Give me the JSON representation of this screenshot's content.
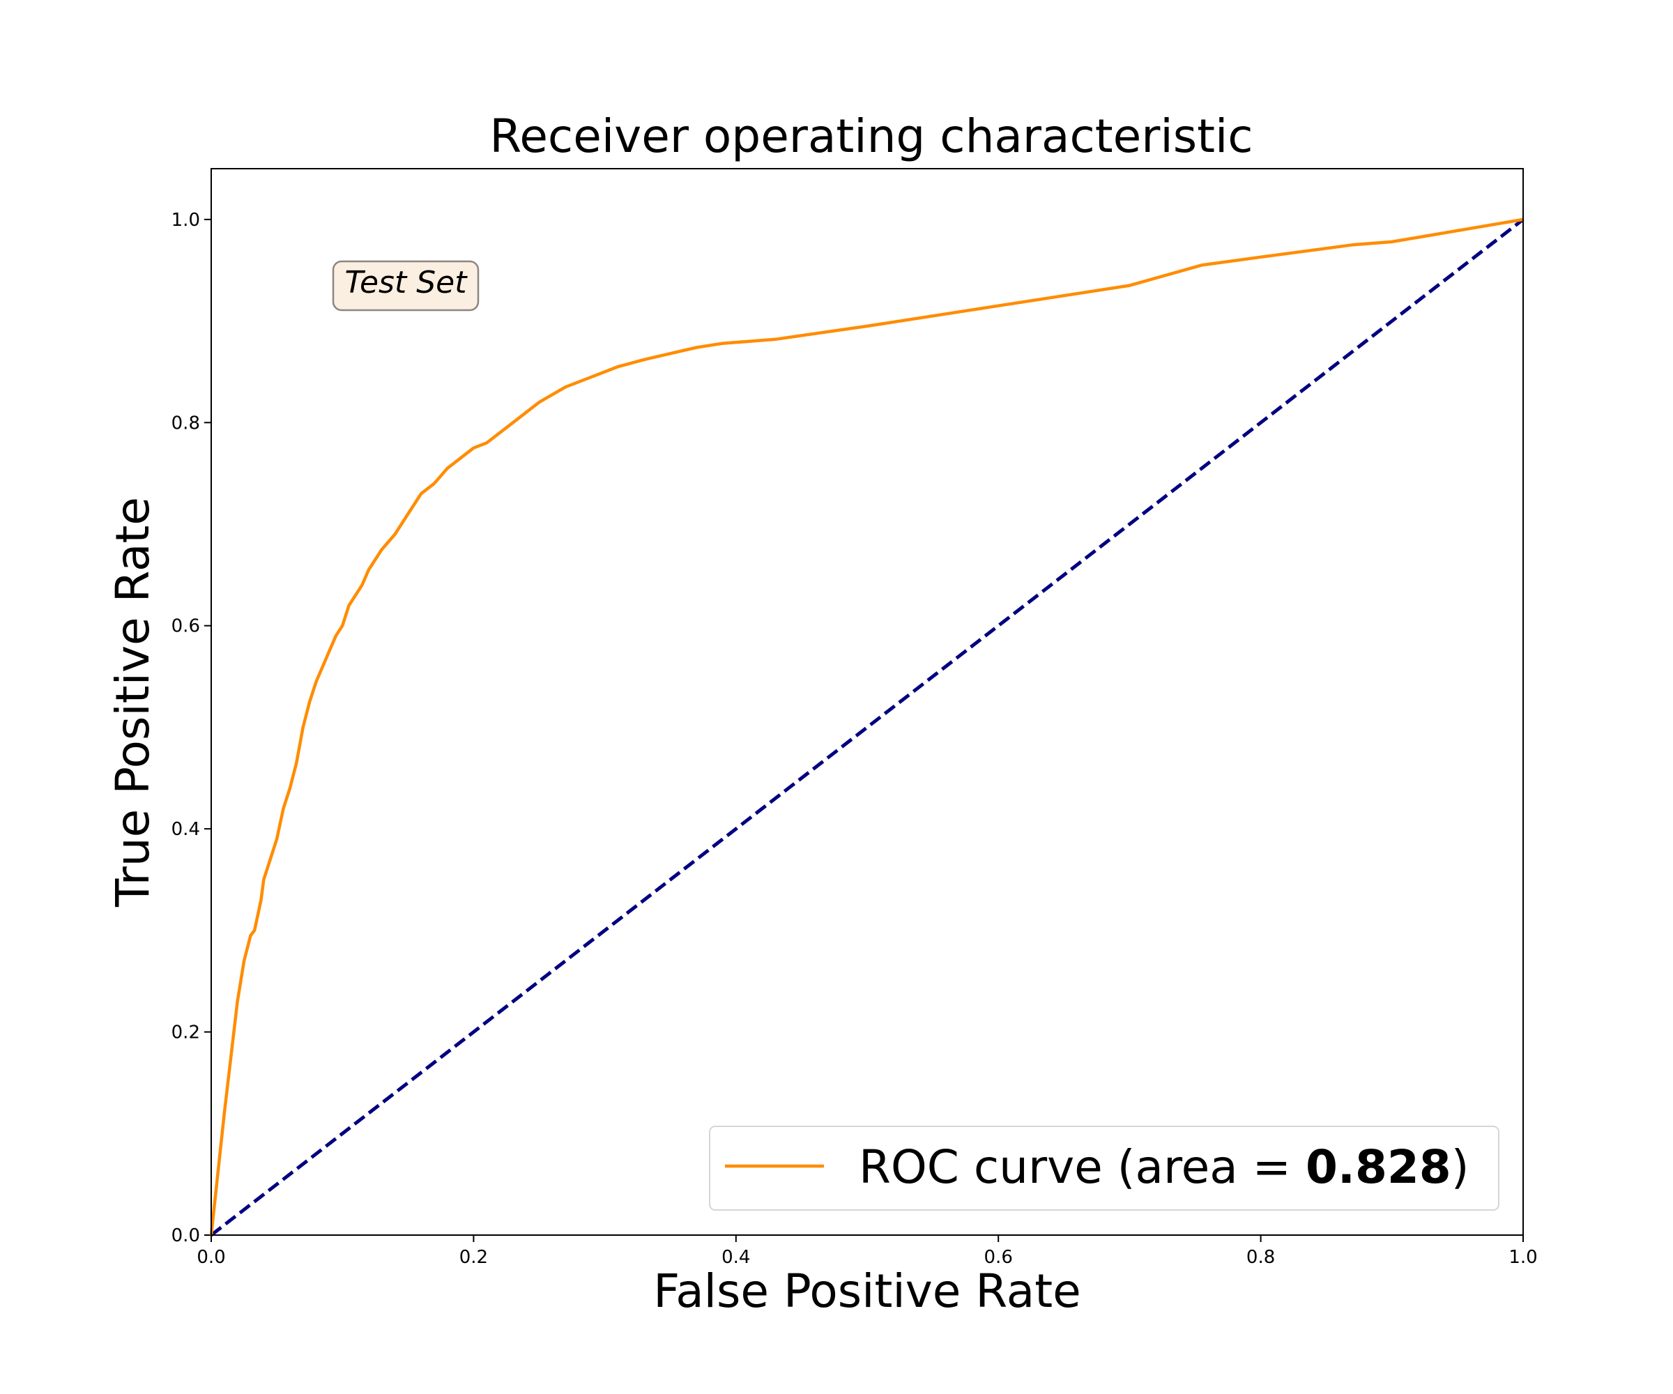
{
  "chart_data": {
    "type": "line",
    "title": "Receiver operating characteristic",
    "xlabel": "False Positive Rate",
    "ylabel": "True Positive Rate",
    "xlim": [
      0.0,
      1.0
    ],
    "ylim": [
      0.0,
      1.05
    ],
    "xticks": [
      "0.0",
      "0.2",
      "0.4",
      "0.6",
      "0.8",
      "1.0"
    ],
    "yticks": [
      "0.0",
      "0.2",
      "0.4",
      "0.6",
      "0.8",
      "1.0"
    ],
    "grid": false,
    "legend_position": "bottom-right",
    "legend_label_prefix": "ROC curve (area = ",
    "legend_label_value": "0.828",
    "legend_label_suffix": ")",
    "annotation": "Test Set",
    "series": [
      {
        "name": "ROC curve (area = 0.828)",
        "color": "#ff8c00",
        "style": "solid",
        "x": [
          0.0,
          0.01,
          0.02,
          0.025,
          0.03,
          0.033,
          0.038,
          0.04,
          0.045,
          0.05,
          0.055,
          0.06,
          0.065,
          0.07,
          0.075,
          0.08,
          0.085,
          0.09,
          0.095,
          0.1,
          0.105,
          0.11,
          0.115,
          0.12,
          0.13,
          0.14,
          0.15,
          0.16,
          0.17,
          0.18,
          0.19,
          0.2,
          0.21,
          0.22,
          0.23,
          0.24,
          0.25,
          0.27,
          0.29,
          0.31,
          0.33,
          0.35,
          0.37,
          0.39,
          0.41,
          0.43,
          0.5,
          0.6,
          0.7,
          0.755,
          0.8,
          0.87,
          0.9,
          1.0
        ],
        "y": [
          0.0,
          0.12,
          0.23,
          0.27,
          0.295,
          0.3,
          0.33,
          0.35,
          0.37,
          0.39,
          0.42,
          0.44,
          0.465,
          0.5,
          0.525,
          0.545,
          0.56,
          0.575,
          0.59,
          0.6,
          0.62,
          0.63,
          0.64,
          0.655,
          0.675,
          0.69,
          0.71,
          0.73,
          0.74,
          0.755,
          0.765,
          0.775,
          0.78,
          0.79,
          0.8,
          0.81,
          0.82,
          0.835,
          0.845,
          0.855,
          0.862,
          0.868,
          0.874,
          0.878,
          0.88,
          0.882,
          0.895,
          0.915,
          0.935,
          0.955,
          0.963,
          0.975,
          0.978,
          1.0
        ]
      },
      {
        "name": "",
        "color": "#000080",
        "style": "dashed",
        "x": [
          0.0,
          1.0
        ],
        "y": [
          0.0,
          1.0
        ]
      }
    ]
  }
}
